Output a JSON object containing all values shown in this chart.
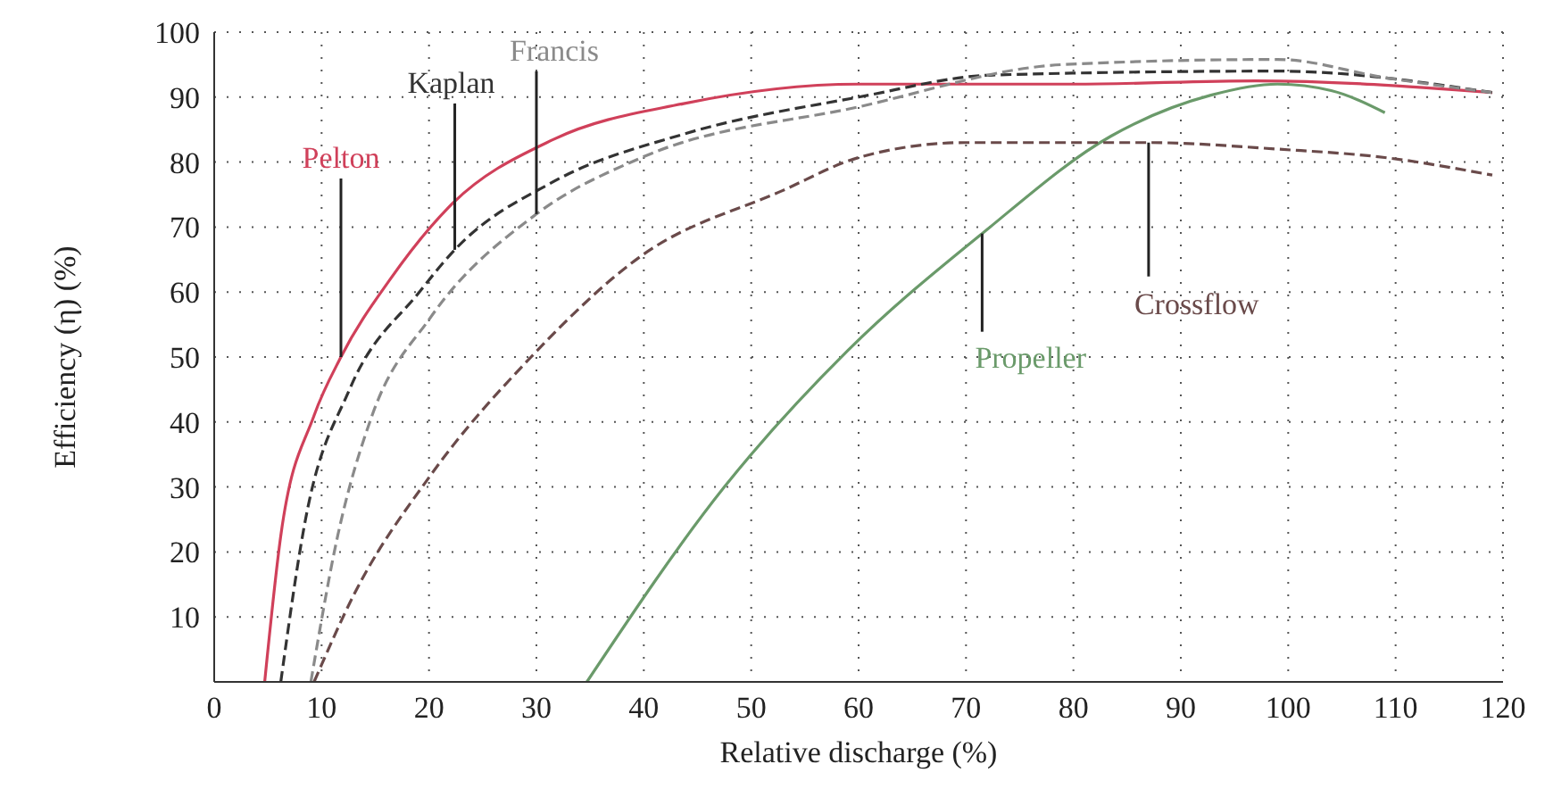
{
  "chart_data": {
    "type": "line",
    "xlabel": "Relative discharge (%)",
    "ylabel": "Efficiency (η) (%)",
    "xlim": [
      0,
      120
    ],
    "xticks": [
      0,
      10,
      20,
      30,
      40,
      50,
      60,
      70,
      80,
      90,
      100,
      110,
      120
    ],
    "ylim": [
      0,
      100
    ],
    "yticks": [
      10,
      20,
      30,
      40,
      50,
      60,
      70,
      80,
      90,
      100
    ],
    "grid": true,
    "legend": false,
    "marker": "none",
    "series": [
      {
        "name": "Pelton",
        "color": "#d0405a",
        "line_style": "solid",
        "x": [
          4.7,
          6.2,
          9.3,
          11.8,
          16.4,
          21.8,
          31.6,
          43.7,
          60,
          80,
          97,
          119
        ],
        "values": [
          0,
          22.5,
          41,
          50,
          62,
          73,
          83.5,
          89,
          92,
          92,
          92.5,
          90.7
        ]
      },
      {
        "name": "Kaplan",
        "color": "#333333",
        "line_style": "dashed",
        "x": [
          6.2,
          8.5,
          12.6,
          19.1,
          22.4,
          31.6,
          43.7,
          60,
          72.5,
          99,
          119
        ],
        "values": [
          0,
          25,
          45,
          60,
          66.5,
          77,
          84.3,
          90,
          93.4,
          94,
          90.7
        ]
      },
      {
        "name": "Francis",
        "color": "#8a8a8a",
        "line_style": "dashed",
        "x": [
          9,
          11.5,
          14.7,
          20.1,
          30,
          39.8,
          60,
          79,
          99,
          109,
          119
        ],
        "values": [
          0,
          22.5,
          41,
          56,
          72,
          80.7,
          88.5,
          95,
          95.8,
          93,
          90.7
        ]
      },
      {
        "name": "Propeller",
        "color": "#6a9a6a",
        "line_style": "solid",
        "x": [
          34.7,
          47.5,
          59,
          71.5,
          83.5,
          92.8,
          99,
          104,
          109
        ],
        "values": [
          0,
          30,
          51,
          69,
          84,
          90.3,
          92,
          91,
          87.6
        ]
      },
      {
        "name": "Crossflow",
        "color": "#6a4a4a",
        "line_style": "dashed",
        "x": [
          9.3,
          13,
          20.1,
          29.5,
          39.8,
          52.9,
          60,
          69.9,
          87,
          99,
          109,
          119
        ],
        "values": [
          0,
          13.4,
          31.7,
          50,
          65.6,
          75.6,
          80.7,
          83,
          83,
          82,
          80.7,
          78
        ]
      }
    ]
  }
}
